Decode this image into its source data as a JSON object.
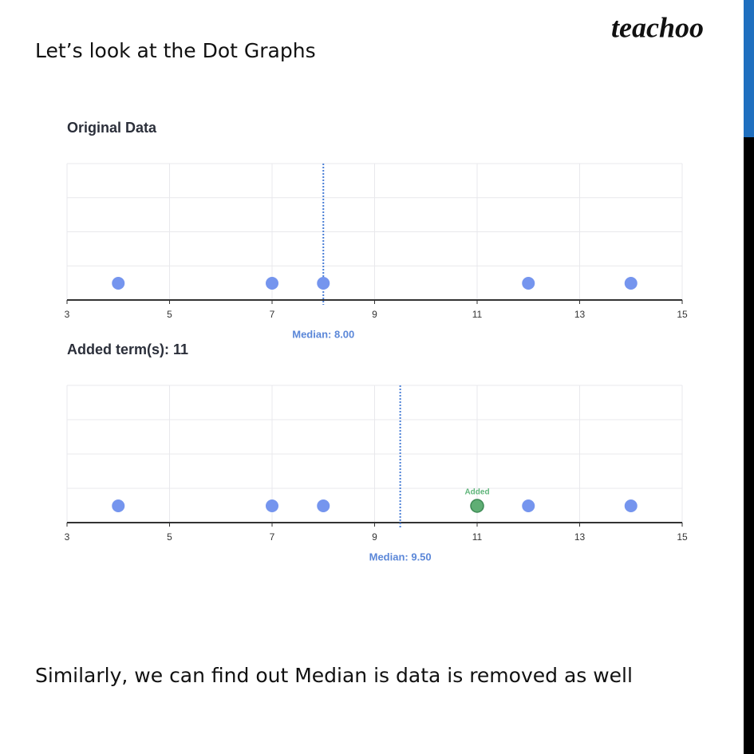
{
  "heading": "Let’s look at the Dot Graphs",
  "logo": "teachoo",
  "footer": "Similarly, we can find out Median is data is removed as well",
  "chart_data": [
    {
      "type": "dotplot",
      "title": "Original Data",
      "x": [
        4,
        7,
        8,
        12,
        14
      ],
      "color": "#7595ee",
      "xlim": [
        3,
        15
      ],
      "xticks": [
        3,
        5,
        7,
        9,
        11,
        13,
        15
      ],
      "grid": true,
      "median": {
        "value": 8,
        "label": "Median: 8.00"
      }
    },
    {
      "type": "dotplot",
      "title": "Added term(s): 11",
      "x": [
        4,
        7,
        8,
        12,
        14
      ],
      "color": "#7595ee",
      "added": {
        "x": 11,
        "label": "Added",
        "color": "#5fae74"
      },
      "xlim": [
        3,
        15
      ],
      "xticks": [
        3,
        5,
        7,
        9,
        11,
        13,
        15
      ],
      "grid": true,
      "median": {
        "value": 9.5,
        "label": "Median: 9.50"
      }
    }
  ]
}
